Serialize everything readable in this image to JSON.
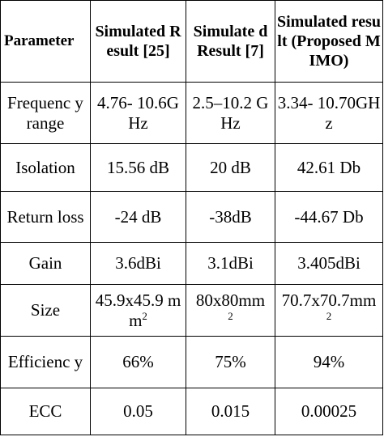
{
  "table": {
    "headers": [
      "Parameter",
      "Simulated Result [25]",
      "Simulate d Result [7]",
      "Simulated result (Proposed MIMO)"
    ],
    "rows": [
      {
        "parameter": "Frequenc y range",
        "ref25": "4.76- 10.6GHz",
        "ref7": "2.5–10.2 GHz",
        "proposed": "3.34- 10.70GHz"
      },
      {
        "parameter": "Isolation",
        "ref25": "15.56 dB",
        "ref7": "20 dB",
        "proposed": "42.61 Db"
      },
      {
        "parameter": "Return loss",
        "ref25": "-24 dB",
        "ref7": "-38dB",
        "proposed": "-44.67 Db"
      },
      {
        "parameter": "Gain",
        "ref25": "3.6dBi",
        "ref7": "3.1dBi",
        "proposed": "3.405dBi"
      },
      {
        "parameter": "Size",
        "ref25": "45.9x45.9 mm",
        "ref7": "80x80mm",
        "proposed": "70.7x70.7mm",
        "unit_superscript": "2"
      },
      {
        "parameter": "Efficienc y",
        "ref25": "66%",
        "ref7": "75%",
        "proposed": "94%"
      },
      {
        "parameter": "ECC",
        "ref25": "0.05",
        "ref7": "0.015",
        "proposed": "0.00025"
      }
    ]
  }
}
